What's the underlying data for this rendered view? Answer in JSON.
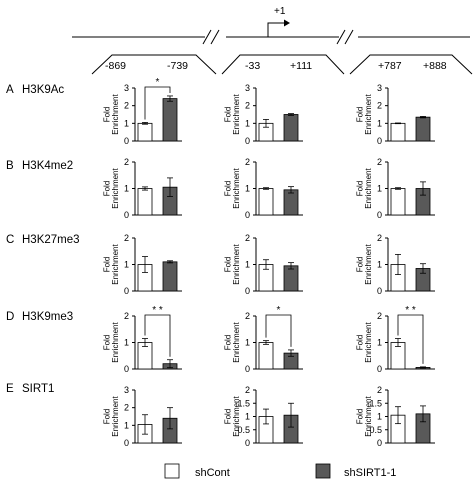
{
  "diagram": {
    "tss_label": "+1",
    "regions": [
      {
        "start": "-869",
        "end": "-739"
      },
      {
        "start": "-33",
        "end": "+111"
      },
      {
        "start": "+787",
        "end": "+888"
      }
    ]
  },
  "legend": {
    "items": [
      {
        "label": "shCont",
        "color": "#ffffff"
      },
      {
        "label": "shSIRT1-1",
        "color": "#595959"
      }
    ]
  },
  "y_axis_label_line1": "Fold",
  "y_axis_label_line2": "Enrichment",
  "colors": {
    "control": "#ffffff",
    "knockdown": "#595959",
    "axis": "#000000"
  },
  "chart_data": [
    {
      "row": "A",
      "mark": "H3K9Ac",
      "region": "-869 -739",
      "type": "bar",
      "categories": [
        "shCont",
        "shSIRT1-1"
      ],
      "values": [
        1.0,
        2.4
      ],
      "errors": [
        0.05,
        0.15
      ],
      "ylim": [
        0,
        3
      ],
      "yticks": [
        "0",
        "1",
        "2",
        "3"
      ],
      "annotation": "*"
    },
    {
      "row": "A",
      "mark": "H3K9Ac",
      "region": "-33 +111",
      "type": "bar",
      "categories": [
        "shCont",
        "shSIRT1-1"
      ],
      "values": [
        1.0,
        1.5
      ],
      "errors": [
        0.22,
        0.05
      ],
      "ylim": [
        0,
        3
      ],
      "yticks": [
        "0",
        "1",
        "2",
        "3"
      ],
      "annotation": ""
    },
    {
      "row": "A",
      "mark": "H3K9Ac",
      "region": "+787 +888",
      "type": "bar",
      "categories": [
        "shCont",
        "shSIRT1-1"
      ],
      "values": [
        1.0,
        1.35
      ],
      "errors": [
        0.02,
        0.04
      ],
      "ylim": [
        0,
        3
      ],
      "yticks": [
        "0",
        "1",
        "2",
        "3"
      ],
      "annotation": ""
    },
    {
      "row": "B",
      "mark": "H3K4me2",
      "region": "-869 -739",
      "type": "bar",
      "categories": [
        "shCont",
        "shSIRT1-1"
      ],
      "values": [
        1.0,
        1.05
      ],
      "errors": [
        0.06,
        0.35
      ],
      "ylim": [
        0,
        2
      ],
      "yticks": [
        "0",
        "1",
        "2"
      ],
      "annotation": ""
    },
    {
      "row": "B",
      "mark": "H3K4me2",
      "region": "-33 +111",
      "type": "bar",
      "categories": [
        "shCont",
        "shSIRT1-1"
      ],
      "values": [
        1.0,
        0.95
      ],
      "errors": [
        0.03,
        0.12
      ],
      "ylim": [
        0,
        2
      ],
      "yticks": [
        "0",
        "1",
        "2"
      ],
      "annotation": ""
    },
    {
      "row": "B",
      "mark": "H3K4me2",
      "region": "+787 +888",
      "type": "bar",
      "categories": [
        "shCont",
        "shSIRT1-1"
      ],
      "values": [
        1.0,
        1.0
      ],
      "errors": [
        0.03,
        0.25
      ],
      "ylim": [
        0,
        2
      ],
      "yticks": [
        "0",
        "1",
        "2"
      ],
      "annotation": ""
    },
    {
      "row": "C",
      "mark": "H3K27me3",
      "region": "-869 -739",
      "type": "bar",
      "categories": [
        "shCont",
        "shSIRT1-1"
      ],
      "values": [
        1.0,
        1.1
      ],
      "errors": [
        0.3,
        0.04
      ],
      "ylim": [
        0,
        2
      ],
      "yticks": [
        "0",
        "1",
        "2"
      ],
      "annotation": ""
    },
    {
      "row": "C",
      "mark": "H3K27me3",
      "region": "-33 +111",
      "type": "bar",
      "categories": [
        "shCont",
        "shSIRT1-1"
      ],
      "values": [
        1.0,
        0.95
      ],
      "errors": [
        0.18,
        0.12
      ],
      "ylim": [
        0,
        2
      ],
      "yticks": [
        "0",
        "1",
        "2"
      ],
      "annotation": ""
    },
    {
      "row": "C",
      "mark": "H3K27me3",
      "region": "+787 +888",
      "type": "bar",
      "categories": [
        "shCont",
        "shSIRT1-1"
      ],
      "values": [
        1.0,
        0.85
      ],
      "errors": [
        0.38,
        0.18
      ],
      "ylim": [
        0,
        2
      ],
      "yticks": [
        "0",
        "1",
        "2"
      ],
      "annotation": ""
    },
    {
      "row": "D",
      "mark": "H3K9me3",
      "region": "-869 -739",
      "type": "bar",
      "categories": [
        "shCont",
        "shSIRT1-1"
      ],
      "values": [
        1.0,
        0.2
      ],
      "errors": [
        0.15,
        0.15
      ],
      "ylim": [
        0,
        2
      ],
      "yticks": [
        "0",
        "1",
        "2"
      ],
      "annotation": "* *"
    },
    {
      "row": "D",
      "mark": "H3K9me3",
      "region": "-33 +111",
      "type": "bar",
      "categories": [
        "shCont",
        "shSIRT1-1"
      ],
      "values": [
        1.0,
        0.6
      ],
      "errors": [
        0.07,
        0.12
      ],
      "ylim": [
        0,
        2
      ],
      "yticks": [
        "0",
        "1",
        "2"
      ],
      "annotation": "*"
    },
    {
      "row": "D",
      "mark": "H3K9me3",
      "region": "+787 +888",
      "type": "bar",
      "categories": [
        "shCont",
        "shSIRT1-1"
      ],
      "values": [
        1.0,
        0.06
      ],
      "errors": [
        0.15,
        0.02
      ],
      "ylim": [
        0,
        2
      ],
      "yticks": [
        "0",
        "1",
        "2"
      ],
      "annotation": "* *"
    },
    {
      "row": "E",
      "mark": "SIRT1",
      "region": "-869 -739",
      "type": "bar",
      "categories": [
        "shCont",
        "shSIRT1-1"
      ],
      "values": [
        1.05,
        1.4
      ],
      "errors": [
        0.55,
        0.6
      ],
      "ylim": [
        0,
        3
      ],
      "yticks": [
        "0",
        "1",
        "2",
        "3"
      ],
      "annotation": ""
    },
    {
      "row": "E",
      "mark": "SIRT1",
      "region": "-33 +111",
      "type": "bar",
      "categories": [
        "shCont",
        "shSIRT1-1"
      ],
      "values": [
        1.0,
        1.05
      ],
      "errors": [
        0.28,
        0.45
      ],
      "ylim": [
        0,
        2
      ],
      "yticks": [
        "0",
        "0.5",
        "1",
        "1.5",
        "2"
      ],
      "annotation": ""
    },
    {
      "row": "E",
      "mark": "SIRT1",
      "region": "+787 +888",
      "type": "bar",
      "categories": [
        "shCont",
        "shSIRT1-1"
      ],
      "values": [
        1.05,
        1.1
      ],
      "errors": [
        0.32,
        0.3
      ],
      "ylim": [
        0,
        2
      ],
      "yticks": [
        "0",
        "0.5",
        "1",
        "1.5",
        "2"
      ],
      "annotation": ""
    }
  ]
}
